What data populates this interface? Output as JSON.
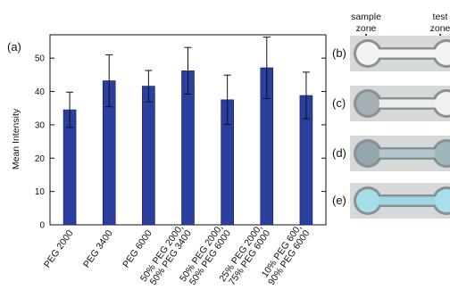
{
  "chart_data": {
    "type": "bar",
    "panel_label": "(a)",
    "ylabel": "Mean Intensity",
    "xlabel": "",
    "ylim": [
      0,
      57
    ],
    "yticks": [
      0,
      10,
      20,
      30,
      40,
      50
    ],
    "categories": [
      [
        "PEG 2000"
      ],
      [
        "PEG 3400"
      ],
      [
        "PEG 6000"
      ],
      [
        "50% PEG 2000,",
        "50% PEG 3400"
      ],
      [
        "50% PEG 2000,",
        "50% PEG 6000"
      ],
      [
        "25% PEG 2000,",
        "75% PEG 6000"
      ],
      [
        "10% PEG 600,",
        "90% PEG 6000"
      ]
    ],
    "values": [
      34.5,
      43.2,
      41.6,
      46.2,
      37.5,
      47.1,
      38.8
    ],
    "error": [
      5.3,
      7.8,
      4.7,
      7.0,
      7.4,
      9.2,
      7.0
    ],
    "bar_color": "#2a3f9e",
    "grid": false
  },
  "side_panels": {
    "header_labels": [
      [
        "sample",
        "zone"
      ],
      [
        "test",
        "zone"
      ]
    ],
    "panels": [
      {
        "label": "(b)",
        "sample_fill": "#f2f2f2",
        "channel_fill": "#f4f4f4",
        "test_fill": "#f2f2f2"
      },
      {
        "label": "(c)",
        "sample_fill": "#a6b0b4",
        "channel_fill": "#eceeee",
        "test_fill": "#f0f0f0"
      },
      {
        "label": "(d)",
        "sample_fill": "#93a8ae",
        "channel_fill": "#b3c6cc",
        "test_fill": "#9fb6bc"
      },
      {
        "label": "(e)",
        "sample_fill": "#a5dde8",
        "channel_fill": "#9fd8e4",
        "test_fill": "#a9dfea"
      }
    ]
  }
}
